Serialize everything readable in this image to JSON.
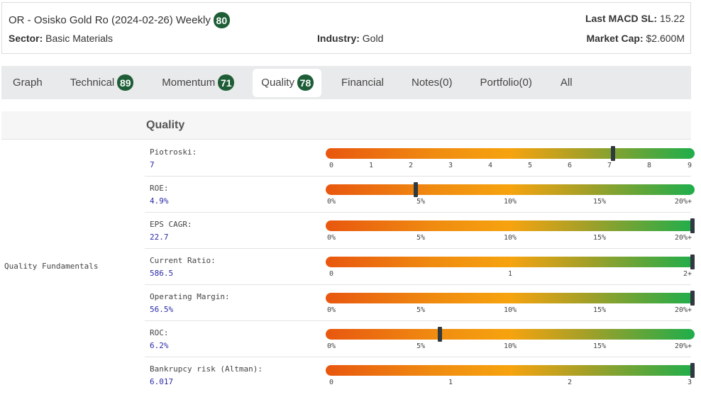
{
  "header": {
    "title": "OR - Osisko Gold Ro (2024-02-26) Weekly",
    "score": "80",
    "macd_label": "Last MACD SL:",
    "macd_value": "15.22",
    "sector_label": "Sector:",
    "sector_value": "Basic Materials",
    "industry_label": "Industry:",
    "industry_value": "Gold",
    "mcap_label": "Market Cap:",
    "mcap_value": "$2.600M"
  },
  "tabs": [
    {
      "label": "Graph",
      "badge": ""
    },
    {
      "label": "Technical",
      "badge": "89"
    },
    {
      "label": "Momentum",
      "badge": "71"
    },
    {
      "label": "Quality",
      "badge": "78",
      "active": true
    },
    {
      "label": "Financial",
      "badge": ""
    },
    {
      "label": "Notes(0)",
      "badge": ""
    },
    {
      "label": "Portfolio(0)",
      "badge": ""
    },
    {
      "label": "All",
      "badge": ""
    }
  ],
  "section": {
    "title": "Quality",
    "group_label": "Quality Fundamentals"
  },
  "metrics": [
    {
      "name": "Piotroski:",
      "value": "7",
      "ticks": [
        "0",
        "1",
        "2",
        "3",
        "4",
        "5",
        "6",
        "7",
        "8",
        "9"
      ],
      "fraction": 0.778
    },
    {
      "name": "ROE:",
      "value": "4.9%",
      "ticks": [
        "0%",
        "5%",
        "10%",
        "15%",
        "20%+"
      ],
      "fraction": 0.245
    },
    {
      "name": "EPS CAGR:",
      "value": "22.7",
      "ticks": [
        "0%",
        "5%",
        "10%",
        "15%",
        "20%+"
      ],
      "fraction": 1.0
    },
    {
      "name": "Current Ratio:",
      "value": "586.5",
      "ticks": [
        "0",
        "1",
        "2+"
      ],
      "fraction": 1.0
    },
    {
      "name": "Operating Margin:",
      "value": "56.5%",
      "ticks": [
        "0%",
        "5%",
        "10%",
        "15%",
        "20%+"
      ],
      "fraction": 1.0
    },
    {
      "name": "ROC:",
      "value": "6.2%",
      "ticks": [
        "0%",
        "5%",
        "10%",
        "15%",
        "20%+"
      ],
      "fraction": 0.31
    },
    {
      "name": "Bankrupcy risk (Altman):",
      "value": "6.017",
      "ticks": [
        "0",
        "1",
        "2",
        "3"
      ],
      "fraction": 1.0
    }
  ],
  "colors": {
    "badge": "#1e5e37",
    "value_text": "#2a2aa8",
    "marker": "#2f3940",
    "gradient_low": "#e8570f",
    "gradient_mid": "#f6a30f",
    "gradient_high": "#1fae4b"
  }
}
